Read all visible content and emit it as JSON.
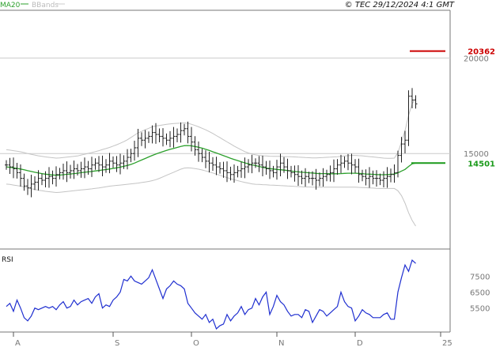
{
  "header": {
    "legend": [
      {
        "label": "MA20",
        "color": "#2ca02c"
      },
      {
        "label": "BBands",
        "color": "#bbbbbb"
      }
    ],
    "copyright": "© TEC 29/12/2024 4:1 GMT"
  },
  "colors": {
    "price": "#222222",
    "ma": "#2ca02c",
    "bbands": "#c4c4c4",
    "rsi": "#1f2fd0",
    "resistance": "#cc0000",
    "support": "#1a9a1a",
    "grid": "#cccccc",
    "axis": "#555555"
  },
  "chart_data": [
    {
      "type": "ohlc",
      "y_ticks": [
        {
          "value": 200,
          "label": "20000"
        },
        {
          "value": 150,
          "label": "15000"
        }
      ],
      "ylim": [
        100,
        225
      ],
      "x_ticks": [
        {
          "index": 2,
          "label": "A"
        },
        {
          "index": 30,
          "label": "S"
        },
        {
          "index": 52,
          "label": "O"
        },
        {
          "index": 76,
          "label": "N"
        },
        {
          "index": 98,
          "label": "D"
        },
        {
          "index": 122,
          "label": "25"
        }
      ],
      "levels": [
        {
          "name": "resistance",
          "value": 203.62,
          "label": "20362"
        },
        {
          "name": "support",
          "value": 145.01,
          "label": "14501"
        }
      ],
      "series_close": [
        144,
        143,
        142,
        140,
        137,
        133,
        132,
        134,
        135,
        137,
        136,
        137,
        138,
        137,
        139,
        140,
        141,
        140,
        141,
        142,
        141,
        142,
        143,
        142,
        144,
        145,
        144,
        143,
        144,
        146,
        145,
        144,
        145,
        146,
        148,
        150,
        153,
        158,
        157,
        158,
        159,
        161,
        160,
        159,
        158,
        157,
        158,
        159,
        160,
        162,
        163,
        159,
        156,
        152,
        150,
        148,
        146,
        145,
        144,
        143,
        142,
        141,
        140,
        139,
        140,
        141,
        142,
        143,
        144,
        145,
        145,
        144,
        143,
        142,
        141,
        140,
        143,
        145,
        143,
        141,
        140,
        139,
        138,
        137,
        138,
        137,
        137,
        136,
        137,
        138,
        139,
        140,
        142,
        144,
        145,
        146,
        145,
        144,
        143,
        139,
        138,
        137,
        138,
        137,
        137,
        136,
        137,
        138,
        139,
        140,
        149,
        155,
        157,
        180,
        178,
        176
      ],
      "ma_start": 0,
      "ma_values": [
        143.0,
        142.8,
        142.5,
        142.2,
        141.9,
        141.5,
        141.0,
        140.6,
        140.2,
        139.8,
        139.5,
        139.2,
        139.0,
        138.8,
        138.6,
        138.7,
        138.9,
        139.1,
        139.3,
        139.5,
        139.7,
        140.0,
        140.2,
        140.4,
        140.6,
        140.9,
        141.1,
        141.4,
        141.6,
        141.9,
        142.2,
        142.5,
        142.9,
        143.3,
        143.8,
        144.3,
        145.0,
        145.8,
        146.6,
        147.4,
        148.2,
        149.0,
        149.7,
        150.4,
        151.0,
        151.6,
        152.2,
        152.7,
        153.2,
        153.7,
        154.1,
        154.2,
        154.0,
        153.7,
        153.3,
        152.8,
        152.2,
        151.6,
        150.9,
        150.3,
        149.6,
        148.9,
        148.2,
        147.5,
        146.9,
        146.3,
        145.7,
        145.1,
        144.6,
        144.1,
        143.7,
        143.2,
        142.8,
        142.4,
        142.1,
        141.9,
        141.7,
        141.5,
        141.3,
        141.1,
        140.8,
        140.6,
        140.4,
        140.2,
        140.1,
        139.9,
        139.8,
        139.6,
        139.5,
        139.5,
        139.5,
        139.4,
        139.4,
        139.4,
        139.5,
        139.6,
        139.7,
        139.7,
        139.7,
        139.6,
        139.5,
        139.3,
        139.2,
        139.1,
        139.0,
        138.9,
        138.9,
        139.0,
        139.1,
        139.3,
        139.9,
        140.8,
        141.7,
        143.2,
        144.6,
        145.0
      ],
      "bb_upper": [
        152.0,
        151.8,
        151.5,
        151.2,
        150.9,
        150.5,
        150.0,
        149.6,
        149.2,
        148.8,
        148.5,
        148.2,
        148.0,
        147.8,
        147.6,
        147.7,
        147.9,
        148.1,
        148.3,
        148.5,
        148.7,
        149.2,
        149.6,
        150.1,
        150.5,
        151.0,
        151.5,
        152.1,
        152.6,
        153.2,
        153.9,
        154.6,
        155.4,
        156.2,
        157.2,
        158.4,
        159.6,
        160.8,
        161.6,
        162.4,
        163.2,
        164.0,
        164.4,
        164.7,
        165.0,
        165.3,
        165.5,
        165.7,
        165.8,
        165.9,
        166.0,
        165.8,
        165.3,
        164.7,
        164.0,
        163.2,
        162.4,
        161.5,
        160.5,
        159.4,
        158.3,
        157.2,
        156.1,
        155.0,
        153.9,
        152.9,
        151.9,
        151.0,
        150.3,
        149.7,
        149.3,
        149.0,
        148.8,
        148.7,
        148.6,
        148.5,
        148.5,
        148.5,
        148.4,
        148.4,
        148.3,
        148.2,
        148.1,
        148.0,
        147.9,
        147.8,
        147.7,
        147.7,
        147.8,
        147.9,
        148.0,
        148.1,
        148.2,
        148.3,
        148.5,
        148.7,
        148.9,
        149.0,
        149.0,
        148.9,
        148.8,
        148.6,
        148.4,
        148.2,
        148.0,
        147.8,
        147.6,
        147.5,
        147.5,
        147.6,
        150.5,
        156.0,
        162.0,
        170.0,
        176.0,
        179.0
      ],
      "bb_lower": [
        134.0,
        133.8,
        133.5,
        133.2,
        132.9,
        132.5,
        132.0,
        131.6,
        131.2,
        130.8,
        130.5,
        130.2,
        130.0,
        129.8,
        129.6,
        129.7,
        129.9,
        130.1,
        130.3,
        130.5,
        130.7,
        130.9,
        131.1,
        131.3,
        131.5,
        131.8,
        132.0,
        132.3,
        132.6,
        132.9,
        133.1,
        133.3,
        133.5,
        133.7,
        133.9,
        134.1,
        134.3,
        134.5,
        134.8,
        135.1,
        135.4,
        135.8,
        136.3,
        137.0,
        137.8,
        138.6,
        139.4,
        140.2,
        141.0,
        141.8,
        142.4,
        142.5,
        142.4,
        142.1,
        141.8,
        141.4,
        140.9,
        140.4,
        139.8,
        139.2,
        138.6,
        138.0,
        137.4,
        136.8,
        136.3,
        135.8,
        135.3,
        134.9,
        134.5,
        134.1,
        133.9,
        133.8,
        133.7,
        133.6,
        133.5,
        133.4,
        133.3,
        133.2,
        133.1,
        133.0,
        132.9,
        132.8,
        132.7,
        132.6,
        132.5,
        132.5,
        132.4,
        132.4,
        132.4,
        132.4,
        132.4,
        132.4,
        132.4,
        132.4,
        132.4,
        132.4,
        132.4,
        132.4,
        132.4,
        132.3,
        132.2,
        132.1,
        132.0,
        131.9,
        131.8,
        131.7,
        131.7,
        131.7,
        131.7,
        131.7,
        130.5,
        128.0,
        124.0,
        119.0,
        115.0,
        112.0
      ]
    },
    {
      "type": "line",
      "title": "RSI",
      "y_ticks": [
        {
          "value": 75,
          "label": "7500"
        },
        {
          "value": 65,
          "label": "6500"
        },
        {
          "value": 55,
          "label": "5500"
        }
      ],
      "ylim": [
        40,
        92
      ],
      "series": [
        {
          "name": "RSI",
          "values": [
            56,
            58,
            53,
            60,
            55,
            49,
            47,
            50,
            55,
            54,
            55,
            56,
            55,
            56,
            54,
            57,
            59,
            55,
            56,
            60,
            57,
            59,
            60,
            61,
            58,
            62,
            64,
            55,
            57,
            56,
            60,
            62,
            65,
            73,
            72,
            75,
            72,
            71,
            70,
            72,
            74,
            79,
            73,
            67,
            61,
            67,
            69,
            72,
            70,
            69,
            67,
            58,
            55,
            52,
            50,
            48,
            51,
            46,
            48,
            42,
            44,
            45,
            51,
            47,
            50,
            52,
            56,
            51,
            54,
            55,
            61,
            57,
            62,
            65,
            51,
            56,
            63,
            59,
            57,
            53,
            50,
            51,
            51,
            49,
            54,
            53,
            46,
            50,
            54,
            53,
            50,
            52,
            54,
            56,
            65,
            59,
            56,
            55,
            47,
            50,
            54,
            52,
            51,
            49,
            49,
            49,
            51,
            52,
            48,
            48,
            65,
            74,
            82,
            78,
            85,
            83
          ]
        }
      ]
    }
  ]
}
